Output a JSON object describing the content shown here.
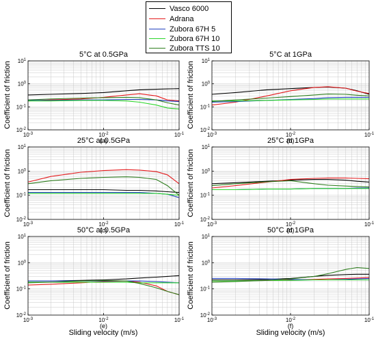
{
  "legend": [
    {
      "name": "Vasco 6000",
      "color": "#000000"
    },
    {
      "name": "Adrana",
      "color": "#e41a1c"
    },
    {
      "name": "Zubora 67H 5",
      "color": "#1f3fbf"
    },
    {
      "name": "Zubora 67H 10",
      "color": "#2bd52b"
    },
    {
      "name": "Zubora TTS 10",
      "color": "#2e7d1e"
    }
  ],
  "ylabel": "Coefficient of friction",
  "xlabel": "Sliding velocity (m/s)",
  "chart_data": [
    {
      "type": "line",
      "panel": "(a)",
      "title": "5°C at 0.5GPa",
      "x_scale": "log",
      "y_scale": "log",
      "xlim": [
        0.001,
        0.1
      ],
      "ylim": [
        0.01,
        10
      ],
      "grid": true,
      "x": [
        0.001,
        0.002,
        0.005,
        0.01,
        0.02,
        0.03,
        0.05,
        0.07,
        0.1
      ],
      "series": [
        {
          "name": "Vasco 6000",
          "values": [
            0.33,
            0.35,
            0.38,
            0.42,
            0.5,
            0.55,
            0.58,
            0.6,
            0.62
          ]
        },
        {
          "name": "Adrana",
          "values": [
            0.18,
            0.2,
            0.22,
            0.26,
            0.33,
            0.37,
            0.3,
            0.2,
            0.18
          ]
        },
        {
          "name": "Zubora 67H 5",
          "values": [
            0.19,
            0.19,
            0.2,
            0.2,
            0.21,
            0.21,
            0.2,
            0.18,
            0.17
          ]
        },
        {
          "name": "Zubora 67H 10",
          "values": [
            0.18,
            0.18,
            0.19,
            0.19,
            0.18,
            0.16,
            0.12,
            0.09,
            0.08
          ]
        },
        {
          "name": "Zubora TTS 10",
          "values": [
            0.2,
            0.22,
            0.24,
            0.25,
            0.26,
            0.25,
            0.2,
            0.15,
            0.12
          ]
        }
      ]
    },
    {
      "type": "line",
      "panel": "(b)",
      "title": "5°C at 1GPa",
      "x_scale": "log",
      "y_scale": "log",
      "xlim": [
        0.001,
        0.1
      ],
      "ylim": [
        0.01,
        10
      ],
      "grid": true,
      "x": [
        0.001,
        0.002,
        0.005,
        0.01,
        0.02,
        0.03,
        0.05,
        0.07,
        0.1
      ],
      "series": [
        {
          "name": "Vasco 6000",
          "values": [
            0.35,
            0.42,
            0.55,
            0.62,
            0.7,
            0.72,
            0.65,
            0.5,
            0.35
          ]
        },
        {
          "name": "Adrana",
          "values": [
            0.12,
            0.16,
            0.3,
            0.5,
            0.7,
            0.75,
            0.65,
            0.48,
            0.38
          ]
        },
        {
          "name": "Zubora 67H 5",
          "values": [
            0.16,
            0.17,
            0.19,
            0.21,
            0.23,
            0.25,
            0.26,
            0.26,
            0.26
          ]
        },
        {
          "name": "Zubora 67H 10",
          "values": [
            0.18,
            0.18,
            0.19,
            0.2,
            0.21,
            0.22,
            0.22,
            0.22,
            0.22
          ]
        },
        {
          "name": "Zubora TTS 10",
          "values": [
            0.17,
            0.2,
            0.24,
            0.28,
            0.33,
            0.36,
            0.35,
            0.32,
            0.3
          ]
        }
      ]
    },
    {
      "type": "line",
      "panel": "(c)",
      "title": "25°C at 0.5GPa",
      "x_scale": "log",
      "y_scale": "log",
      "xlim": [
        0.001,
        0.1
      ],
      "ylim": [
        0.01,
        10
      ],
      "grid": true,
      "x": [
        0.001,
        0.002,
        0.005,
        0.01,
        0.02,
        0.03,
        0.05,
        0.07,
        0.1
      ],
      "series": [
        {
          "name": "Vasco 6000",
          "values": [
            0.17,
            0.17,
            0.17,
            0.17,
            0.16,
            0.16,
            0.15,
            0.14,
            0.13
          ]
        },
        {
          "name": "Adrana",
          "values": [
            0.35,
            0.6,
            0.9,
            1.05,
            1.15,
            1.1,
            0.95,
            0.7,
            0.3
          ]
        },
        {
          "name": "Zubora 67H 5",
          "values": [
            0.13,
            0.13,
            0.13,
            0.13,
            0.13,
            0.13,
            0.12,
            0.11,
            0.08
          ]
        },
        {
          "name": "Zubora 67H 10",
          "values": [
            0.12,
            0.12,
            0.12,
            0.12,
            0.12,
            0.12,
            0.12,
            0.11,
            0.1
          ]
        },
        {
          "name": "Zubora TTS 10",
          "values": [
            0.3,
            0.4,
            0.5,
            0.55,
            0.58,
            0.55,
            0.45,
            0.25,
            0.1
          ]
        }
      ]
    },
    {
      "type": "line",
      "panel": "(d)",
      "title": "25°C at 1GPa",
      "x_scale": "log",
      "y_scale": "log",
      "xlim": [
        0.001,
        0.1
      ],
      "ylim": [
        0.01,
        10
      ],
      "grid": true,
      "x": [
        0.001,
        0.002,
        0.005,
        0.01,
        0.02,
        0.03,
        0.05,
        0.07,
        0.1
      ],
      "series": [
        {
          "name": "Vasco 6000",
          "values": [
            0.3,
            0.33,
            0.38,
            0.42,
            0.45,
            0.45,
            0.42,
            0.38,
            0.35
          ]
        },
        {
          "name": "Adrana",
          "values": [
            0.2,
            0.25,
            0.35,
            0.45,
            0.5,
            0.52,
            0.52,
            0.5,
            0.48
          ]
        },
        {
          "name": "Zubora 67H 5",
          "values": [
            0.17,
            0.17,
            0.18,
            0.18,
            0.19,
            0.19,
            0.19,
            0.2,
            0.2
          ]
        },
        {
          "name": "Zubora 67H 10",
          "values": [
            0.17,
            0.17,
            0.18,
            0.18,
            0.19,
            0.19,
            0.19,
            0.19,
            0.19
          ]
        },
        {
          "name": "Zubora TTS 10",
          "values": [
            0.25,
            0.3,
            0.36,
            0.4,
            0.3,
            0.26,
            0.24,
            0.23,
            0.22
          ]
        }
      ]
    },
    {
      "type": "line",
      "panel": "(e)",
      "title": "50°C at 0.5GPa",
      "x_scale": "log",
      "y_scale": "log",
      "xlim": [
        0.001,
        0.1
      ],
      "ylim": [
        0.01,
        10
      ],
      "grid": true,
      "x": [
        0.001,
        0.002,
        0.005,
        0.01,
        0.02,
        0.03,
        0.05,
        0.07,
        0.1
      ],
      "series": [
        {
          "name": "Vasco 6000",
          "values": [
            0.2,
            0.2,
            0.21,
            0.22,
            0.24,
            0.26,
            0.28,
            0.3,
            0.32
          ]
        },
        {
          "name": "Adrana",
          "values": [
            0.14,
            0.15,
            0.17,
            0.19,
            0.2,
            0.18,
            0.13,
            0.08,
            0.06
          ]
        },
        {
          "name": "Zubora 67H 5",
          "values": [
            0.2,
            0.2,
            0.2,
            0.2,
            0.2,
            0.2,
            0.19,
            0.18,
            0.17
          ]
        },
        {
          "name": "Zubora 67H 10",
          "values": [
            0.18,
            0.18,
            0.18,
            0.18,
            0.18,
            0.17,
            0.17,
            0.17,
            0.17
          ]
        },
        {
          "name": "Zubora TTS 10",
          "values": [
            0.17,
            0.18,
            0.2,
            0.21,
            0.2,
            0.16,
            0.11,
            0.08,
            0.06
          ]
        }
      ]
    },
    {
      "type": "line",
      "panel": "(f)",
      "title": "50°C at 1GPa",
      "x_scale": "log",
      "y_scale": "log",
      "xlim": [
        0.001,
        0.1
      ],
      "ylim": [
        0.01,
        10
      ],
      "grid": true,
      "x": [
        0.001,
        0.002,
        0.005,
        0.01,
        0.02,
        0.03,
        0.05,
        0.07,
        0.1
      ],
      "series": [
        {
          "name": "Vasco 6000",
          "values": [
            0.22,
            0.22,
            0.23,
            0.25,
            0.3,
            0.33,
            0.35,
            0.36,
            0.36
          ]
        },
        {
          "name": "Adrana",
          "values": [
            0.2,
            0.2,
            0.21,
            0.22,
            0.23,
            0.24,
            0.25,
            0.26,
            0.27
          ]
        },
        {
          "name": "Zubora 67H 5",
          "values": [
            0.25,
            0.25,
            0.24,
            0.23,
            0.22,
            0.22,
            0.23,
            0.24,
            0.25
          ]
        },
        {
          "name": "Zubora 67H 10",
          "values": [
            0.2,
            0.2,
            0.21,
            0.21,
            0.22,
            0.22,
            0.22,
            0.22,
            0.22
          ]
        },
        {
          "name": "Zubora TTS 10",
          "values": [
            0.18,
            0.19,
            0.21,
            0.24,
            0.3,
            0.38,
            0.55,
            0.65,
            0.6
          ]
        }
      ]
    }
  ]
}
